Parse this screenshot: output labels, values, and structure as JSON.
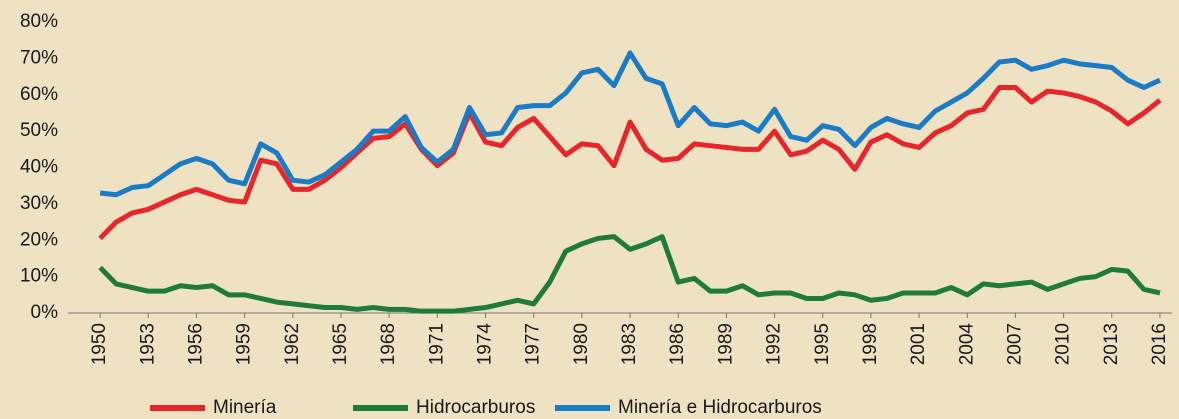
{
  "chart_data": {
    "type": "line",
    "x": [
      1950,
      1951,
      1952,
      1953,
      1954,
      1955,
      1956,
      1957,
      1958,
      1959,
      1960,
      1961,
      1962,
      1963,
      1964,
      1965,
      1966,
      1967,
      1968,
      1969,
      1970,
      1971,
      1972,
      1973,
      1974,
      1975,
      1976,
      1977,
      1978,
      1979,
      1980,
      1981,
      1982,
      1983,
      1984,
      1985,
      1986,
      1987,
      1988,
      1989,
      1990,
      1991,
      1992,
      1993,
      1994,
      1995,
      1996,
      1997,
      1998,
      1999,
      2000,
      2001,
      2002,
      2003,
      2004,
      2005,
      2006,
      2007,
      2008,
      2009,
      2010,
      2011,
      2012,
      2013,
      2014,
      2015,
      2016
    ],
    "series": [
      {
        "name": "Minería",
        "color": "#e8262a",
        "values": [
          20.5,
          25,
          27.5,
          28.5,
          30.5,
          32.5,
          34,
          32.5,
          31,
          30.5,
          42,
          41,
          34,
          34,
          36.5,
          40,
          44,
          48,
          48.5,
          52,
          45,
          40.5,
          44,
          55,
          47,
          46,
          51,
          53.5,
          48.5,
          43.5,
          46.5,
          46,
          40.5,
          52.5,
          45,
          42,
          42.5,
          46.5,
          46,
          45.5,
          45,
          45,
          50,
          43.5,
          44.5,
          47.5,
          45,
          39.5,
          47,
          49,
          46.5,
          45.5,
          49.5,
          51.5,
          55,
          56,
          62,
          62,
          58,
          61,
          60.5,
          59.5,
          58,
          55.5,
          52,
          55,
          58.5
        ]
      },
      {
        "name": "Hidrocarburos",
        "color": "#1e7b3a",
        "values": [
          12.5,
          8,
          7,
          6,
          6,
          7.5,
          7,
          7.5,
          5,
          5,
          4,
          3,
          2.5,
          2,
          1.5,
          1.5,
          1,
          1.5,
          1,
          1,
          0.5,
          0.5,
          0.5,
          1,
          1.5,
          2.5,
          3.5,
          2.5,
          8.5,
          17,
          19,
          20.5,
          21,
          17.5,
          19,
          21,
          8.5,
          9.5,
          6,
          6,
          7.5,
          5,
          5.5,
          5.5,
          4,
          4,
          5.5,
          5,
          3.5,
          4,
          5.5,
          5.5,
          5.5,
          7,
          5,
          8,
          7.5,
          8,
          8.5,
          6.5,
          8,
          9.5,
          10,
          12,
          11.5,
          6.5,
          5.5
        ]
      },
      {
        "name": "Minería e Hidrocarburos",
        "color": "#1a7bc7",
        "values": [
          33,
          32.5,
          34.5,
          35,
          38,
          41,
          42.5,
          41,
          36.5,
          35.5,
          46.5,
          44,
          36.5,
          36,
          38,
          41.5,
          45,
          50,
          50,
          54,
          45.5,
          41.5,
          45,
          56.5,
          49,
          49.5,
          56.5,
          57,
          57,
          60.5,
          66,
          67,
          62.5,
          71.5,
          64.5,
          63,
          51.5,
          56.5,
          52,
          51.5,
          52.5,
          50,
          56,
          48.5,
          47.5,
          51.5,
          50.5,
          46,
          51,
          53.5,
          52,
          51,
          55.5,
          58,
          60.5,
          64.5,
          69,
          69.5,
          67,
          68,
          69.5,
          68.5,
          68,
          67.5,
          64,
          62,
          64
        ]
      }
    ],
    "xlim": [
      1948,
      2016.75
    ],
    "xticks": [
      1950,
      1953,
      1956,
      1959,
      1962,
      1965,
      1968,
      1971,
      1974,
      1977,
      1980,
      1983,
      1986,
      1989,
      1992,
      1995,
      1998,
      2001,
      2004,
      2007,
      2010,
      2013,
      2016
    ],
    "ylim": [
      0,
      80
    ],
    "yticks": [
      {
        "value": 0,
        "label": "0%"
      },
      {
        "value": 10,
        "label": "10%"
      },
      {
        "value": 20,
        "label": "20%"
      },
      {
        "value": 30,
        "label": "30%"
      },
      {
        "value": 40,
        "label": "40%"
      },
      {
        "value": 50,
        "label": "50%"
      },
      {
        "value": 60,
        "label": "60%"
      },
      {
        "value": 70,
        "label": "70%"
      },
      {
        "value": 80,
        "label": "80%"
      }
    ],
    "grid": false,
    "legend": "bottom"
  }
}
